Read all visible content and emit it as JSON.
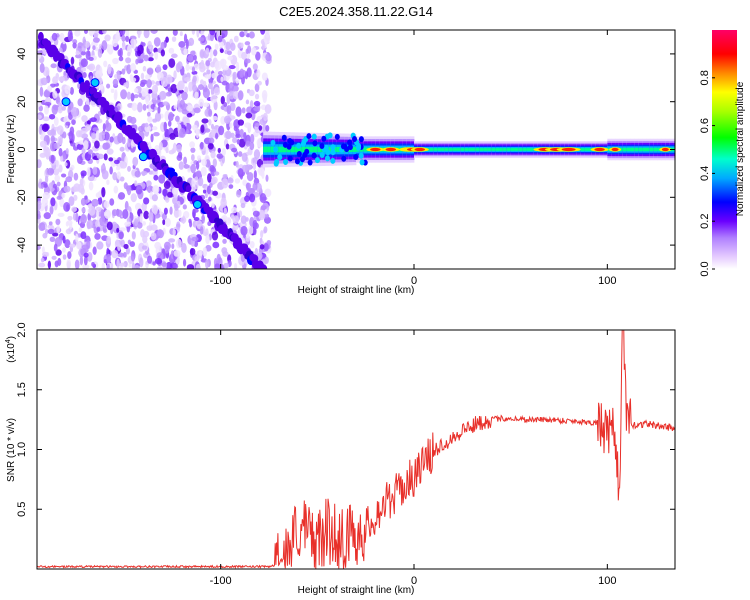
{
  "title": "C2E5.2024.358.11.22.G14",
  "chart_data": [
    {
      "type": "heatmap",
      "xlabel": "Height of straight line (km)",
      "ylabel": "Frequency (Hz)",
      "xlim": [
        -195,
        135
      ],
      "ylim": [
        -50,
        50
      ],
      "x_ticks": [
        -100,
        0,
        100
      ],
      "y_ticks": [
        -40,
        -20,
        0,
        20,
        40
      ],
      "colorbar": {
        "label": "Normalized spectral amplitude",
        "range": [
          0,
          1
        ],
        "ticks": [
          0.0,
          0.2,
          0.4,
          0.6,
          0.8
        ],
        "tick_labels": [
          "0.0",
          "0.2",
          "0.4",
          "0.6",
          "0.8"
        ]
      },
      "features": [
        {
          "name": "diagonal-streak",
          "x": [
            -193,
            -78
          ],
          "y": [
            46,
            -50
          ]
        },
        {
          "name": "noise-region",
          "x": [
            -195,
            -75
          ]
        },
        {
          "name": "zero-frequency-band",
          "x": [
            -78,
            135
          ],
          "y": 0
        }
      ]
    },
    {
      "type": "line",
      "xlabel": "Height of straight line (km)",
      "ylabel": "SNR (10 * v/v)",
      "exponent_label": "(x10",
      "exponent_power": "4",
      "exponent_close": ")",
      "xlim": [
        -195,
        135
      ],
      "ylim": [
        0,
        2.0
      ],
      "x_ticks": [
        -100,
        0,
        100
      ],
      "y_ticks": [
        0.5,
        1.0,
        1.5,
        2.0
      ],
      "y_tick_labels": [
        "0.5",
        "1.0",
        "1.5",
        "2.0"
      ],
      "series": [
        {
          "color": "#e8302a",
          "x": [
            -195,
            -170,
            -140,
            -110,
            -85,
            -75,
            -70,
            -65,
            -60,
            -55,
            -50,
            -45,
            -40,
            -35,
            -30,
            -25,
            -20,
            -15,
            -10,
            -5,
            0,
            5,
            10,
            15,
            20,
            25,
            30,
            35,
            40,
            45,
            50,
            60,
            70,
            80,
            90,
            96,
            100,
            104,
            106,
            108,
            110,
            115,
            120,
            125,
            130,
            135
          ],
          "y": [
            0.02,
            0.02,
            0.02,
            0.02,
            0.02,
            0.02,
            0.04,
            0.15,
            0.35,
            0.3,
            0.22,
            0.32,
            0.28,
            0.26,
            0.3,
            0.34,
            0.45,
            0.55,
            0.62,
            0.7,
            0.78,
            0.88,
            0.98,
            1.05,
            1.1,
            1.16,
            1.2,
            1.23,
            1.25,
            1.26,
            1.26,
            1.25,
            1.25,
            1.24,
            1.23,
            1.22,
            1.1,
            1.15,
            0.6,
            1.9,
            1.22,
            1.2,
            1.22,
            1.2,
            1.19,
            1.18
          ]
        }
      ]
    }
  ]
}
